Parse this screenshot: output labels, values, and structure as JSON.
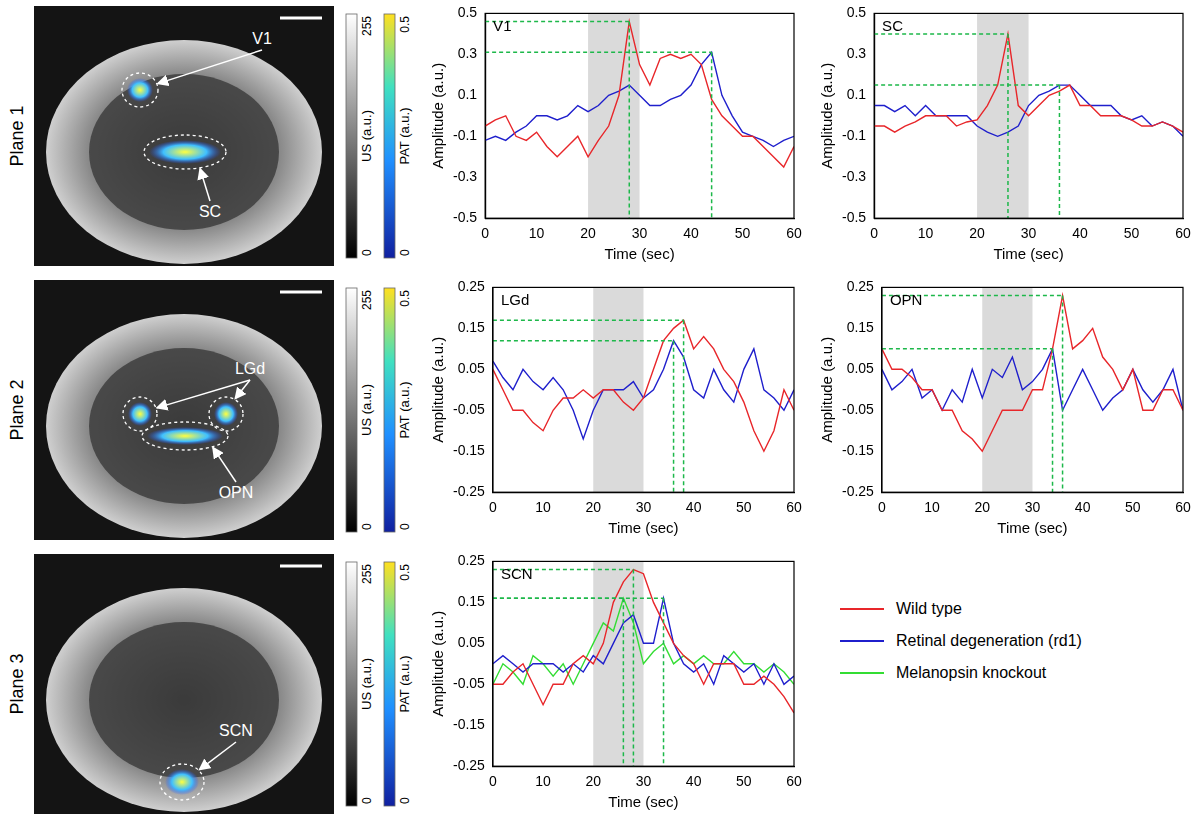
{
  "planes": [
    {
      "label": "Plane 1",
      "regions": [
        "V1",
        "SC"
      ]
    },
    {
      "label": "Plane 2",
      "regions": [
        "LGd",
        "OPN"
      ]
    },
    {
      "label": "Plane 3",
      "regions": [
        "SCN"
      ]
    }
  ],
  "colorbars": [
    {
      "label": "US (a.u.)",
      "range": [
        0,
        255
      ]
    },
    {
      "label": "PAT (a.u.)",
      "range": [
        0,
        0.5
      ]
    }
  ],
  "chart_data": [
    {
      "type": "line",
      "title": "V1",
      "x_label": "Time (sec)",
      "y_label": "Amplitude (a.u.)",
      "x": [
        0,
        2,
        4,
        6,
        8,
        10,
        12,
        14,
        16,
        18,
        20,
        22,
        24,
        26,
        28,
        30,
        32,
        34,
        36,
        38,
        40,
        42,
        44,
        46,
        48,
        50,
        52,
        54,
        56,
        58,
        60
      ],
      "xlim": [
        0,
        60
      ],
      "xticks": [
        0,
        10,
        20,
        30,
        40,
        50,
        60
      ],
      "ylim": [
        -0.5,
        0.5
      ],
      "yticks": [
        -0.5,
        -0.3,
        -0.1,
        0.1,
        0.3,
        0.5
      ],
      "stimulus": [
        20,
        30
      ],
      "peaks": [
        {
          "x": 28,
          "y": 0.46
        },
        {
          "x": 44,
          "y": 0.31
        }
      ],
      "series": [
        {
          "name": "Wild type",
          "color": "#e8262a",
          "values": [
            -0.05,
            -0.02,
            0.0,
            -0.1,
            -0.12,
            -0.08,
            -0.15,
            -0.2,
            -0.15,
            -0.1,
            -0.2,
            -0.12,
            -0.05,
            0.1,
            0.46,
            0.25,
            0.15,
            0.28,
            0.3,
            0.28,
            0.3,
            0.25,
            0.08,
            0.0,
            -0.05,
            -0.1,
            -0.1,
            -0.15,
            -0.2,
            -0.25,
            -0.15
          ]
        },
        {
          "name": "Retinal degeneration (rd1)",
          "color": "#1f1fcc",
          "values": [
            -0.12,
            -0.1,
            -0.12,
            -0.08,
            -0.05,
            0.0,
            0.0,
            -0.02,
            0.0,
            0.05,
            0.02,
            0.05,
            0.1,
            0.12,
            0.15,
            0.1,
            0.05,
            0.05,
            0.08,
            0.1,
            0.15,
            0.25,
            0.31,
            0.1,
            0.0,
            -0.08,
            -0.1,
            -0.12,
            -0.15,
            -0.12,
            -0.1
          ]
        }
      ]
    },
    {
      "type": "line",
      "title": "SC",
      "x_label": "Time (sec)",
      "y_label": "Amplitude (a.u.)",
      "x": [
        0,
        2,
        4,
        6,
        8,
        10,
        12,
        14,
        16,
        18,
        20,
        22,
        24,
        26,
        28,
        30,
        32,
        34,
        36,
        38,
        40,
        42,
        44,
        46,
        48,
        50,
        52,
        54,
        56,
        58,
        60
      ],
      "xlim": [
        0,
        60
      ],
      "xticks": [
        0,
        10,
        20,
        30,
        40,
        50,
        60
      ],
      "ylim": [
        -0.5,
        0.5
      ],
      "yticks": [
        -0.5,
        -0.3,
        -0.1,
        0.1,
        0.3,
        0.5
      ],
      "stimulus": [
        20,
        30
      ],
      "peaks": [
        {
          "x": 26,
          "y": 0.4
        },
        {
          "x": 36,
          "y": 0.15
        }
      ],
      "series": [
        {
          "name": "Wild type",
          "color": "#e8262a",
          "values": [
            -0.05,
            -0.05,
            -0.08,
            -0.05,
            -0.03,
            0.0,
            0.0,
            0.0,
            -0.05,
            -0.03,
            -0.02,
            0.05,
            0.15,
            0.4,
            0.05,
            0.0,
            0.05,
            0.1,
            0.12,
            0.15,
            0.05,
            0.05,
            0.0,
            0.0,
            0.0,
            -0.02,
            -0.05,
            -0.05,
            -0.03,
            -0.05,
            -0.08
          ]
        },
        {
          "name": "Retinal degeneration (rd1)",
          "color": "#1f1fcc",
          "values": [
            0.05,
            0.05,
            0.02,
            0.05,
            0.0,
            0.05,
            0.0,
            0.0,
            0.0,
            0.0,
            -0.05,
            -0.08,
            -0.1,
            -0.08,
            -0.05,
            0.05,
            0.1,
            0.12,
            0.15,
            0.15,
            0.1,
            0.05,
            0.05,
            0.05,
            0.0,
            -0.02,
            0.0,
            -0.05,
            -0.03,
            -0.05,
            -0.1
          ]
        }
      ]
    },
    {
      "type": "line",
      "title": "LGd",
      "x_label": "Time (sec)",
      "y_label": "Amplitude (a.u.)",
      "x": [
        0,
        2,
        4,
        6,
        8,
        10,
        12,
        14,
        16,
        18,
        20,
        22,
        24,
        26,
        28,
        30,
        32,
        34,
        36,
        38,
        40,
        42,
        44,
        46,
        48,
        50,
        52,
        54,
        56,
        58,
        60
      ],
      "xlim": [
        0,
        60
      ],
      "xticks": [
        0,
        10,
        20,
        30,
        40,
        50,
        60
      ],
      "ylim": [
        -0.25,
        0.25
      ],
      "yticks": [
        -0.25,
        -0.15,
        -0.05,
        0.05,
        0.15,
        0.25
      ],
      "stimulus": [
        20,
        30
      ],
      "peaks": [
        {
          "x": 38,
          "y": 0.17
        },
        {
          "x": 36,
          "y": 0.12
        }
      ],
      "series": [
        {
          "name": "Wild type",
          "color": "#e8262a",
          "values": [
            0.05,
            0.0,
            -0.05,
            -0.05,
            -0.08,
            -0.1,
            -0.05,
            -0.02,
            -0.02,
            0.0,
            -0.02,
            0.0,
            0.0,
            -0.03,
            -0.05,
            -0.02,
            0.05,
            0.12,
            0.15,
            0.17,
            0.1,
            0.13,
            0.1,
            0.05,
            0.02,
            -0.03,
            -0.1,
            -0.15,
            -0.1,
            0.0,
            -0.05
          ]
        },
        {
          "name": "Retinal degeneration (rd1)",
          "color": "#1f1fcc",
          "values": [
            0.07,
            0.03,
            0.0,
            0.05,
            0.02,
            0.0,
            0.03,
            0.0,
            -0.05,
            -0.12,
            -0.05,
            0.0,
            0.0,
            0.0,
            0.02,
            -0.02,
            0.0,
            0.05,
            0.12,
            0.08,
            0.0,
            -0.02,
            0.05,
            0.0,
            -0.03,
            0.05,
            0.1,
            0.0,
            -0.02,
            -0.05,
            0.0
          ]
        }
      ]
    },
    {
      "type": "line",
      "title": "OPN",
      "x_label": "Time (sec)",
      "y_label": "Amplitude (a.u.)",
      "x": [
        0,
        2,
        4,
        6,
        8,
        10,
        12,
        14,
        16,
        18,
        20,
        22,
        24,
        26,
        28,
        30,
        32,
        34,
        36,
        38,
        40,
        42,
        44,
        46,
        48,
        50,
        52,
        54,
        56,
        58,
        60
      ],
      "xlim": [
        0,
        60
      ],
      "xticks": [
        0,
        10,
        20,
        30,
        40,
        50,
        60
      ],
      "ylim": [
        -0.25,
        0.25
      ],
      "yticks": [
        -0.25,
        -0.15,
        -0.05,
        0.05,
        0.15,
        0.25
      ],
      "stimulus": [
        20,
        30
      ],
      "peaks": [
        {
          "x": 36,
          "y": 0.23
        },
        {
          "x": 34,
          "y": 0.1
        }
      ],
      "series": [
        {
          "name": "Wild type",
          "color": "#e8262a",
          "values": [
            0.1,
            0.05,
            0.05,
            0.03,
            0.0,
            0.0,
            -0.05,
            -0.05,
            -0.1,
            -0.12,
            -0.15,
            -0.1,
            -0.05,
            -0.05,
            -0.05,
            0.0,
            0.0,
            0.1,
            0.23,
            0.1,
            0.12,
            0.15,
            0.08,
            0.05,
            0.0,
            0.05,
            -0.05,
            -0.05,
            0.0,
            0.0,
            -0.05
          ]
        },
        {
          "name": "Retinal degeneration (rd1)",
          "color": "#1f1fcc",
          "values": [
            0.05,
            0.0,
            0.02,
            0.05,
            -0.02,
            0.0,
            -0.05,
            0.0,
            -0.03,
            0.05,
            -0.02,
            0.05,
            0.03,
            0.08,
            0.0,
            0.02,
            0.05,
            0.1,
            -0.05,
            0.0,
            0.05,
            0.0,
            -0.05,
            -0.02,
            0.0,
            0.05,
            0.0,
            -0.03,
            0.0,
            0.05,
            -0.05
          ]
        }
      ]
    },
    {
      "type": "line",
      "title": "SCN",
      "x_label": "Time (sec)",
      "y_label": "Amplitude (a.u.)",
      "x": [
        0,
        2,
        4,
        6,
        8,
        10,
        12,
        14,
        16,
        18,
        20,
        22,
        24,
        26,
        28,
        30,
        32,
        34,
        36,
        38,
        40,
        42,
        44,
        46,
        48,
        50,
        52,
        54,
        56,
        58,
        60
      ],
      "xlim": [
        0,
        60
      ],
      "xticks": [
        0,
        10,
        20,
        30,
        40,
        50,
        60
      ],
      "ylim": [
        -0.25,
        0.25
      ],
      "yticks": [
        -0.25,
        -0.15,
        -0.05,
        0.05,
        0.15,
        0.25
      ],
      "stimulus": [
        20,
        30
      ],
      "peaks": [
        {
          "x": 28,
          "y": 0.23
        },
        {
          "x": 26,
          "y": 0.16
        },
        {
          "x": 34,
          "y": 0.16
        }
      ],
      "series": [
        {
          "name": "Wild type",
          "color": "#e8262a",
          "values": [
            -0.05,
            -0.05,
            -0.02,
            0.0,
            -0.05,
            -0.1,
            -0.05,
            -0.05,
            0.0,
            0.02,
            0.0,
            0.05,
            0.15,
            0.2,
            0.23,
            0.22,
            0.15,
            0.1,
            0.05,
            0.02,
            0.0,
            -0.05,
            0.0,
            0.0,
            0.0,
            -0.05,
            -0.05,
            -0.03,
            -0.05,
            -0.08,
            -0.12
          ]
        },
        {
          "name": "Retinal degeneration (rd1)",
          "color": "#1f1fcc",
          "values": [
            0.0,
            0.02,
            0.0,
            -0.02,
            0.0,
            0.0,
            0.0,
            -0.02,
            0.0,
            -0.02,
            0.02,
            0.0,
            0.05,
            0.1,
            0.12,
            0.05,
            0.05,
            0.16,
            0.05,
            0.0,
            -0.02,
            0.0,
            -0.05,
            0.02,
            0.0,
            -0.02,
            0.0,
            -0.05,
            0.0,
            -0.05,
            -0.03
          ]
        },
        {
          "name": "Melanopsin knockout",
          "color": "#33dd33",
          "values": [
            -0.05,
            0.0,
            -0.02,
            -0.05,
            0.02,
            0.0,
            -0.03,
            0.0,
            -0.05,
            0.0,
            0.05,
            0.1,
            0.08,
            0.16,
            0.1,
            0.0,
            0.03,
            0.05,
            0.0,
            0.02,
            0.0,
            0.02,
            0.0,
            0.0,
            0.03,
            0.0,
            0.0,
            -0.02,
            0.0,
            -0.02,
            -0.05
          ]
        }
      ]
    }
  ]
}
